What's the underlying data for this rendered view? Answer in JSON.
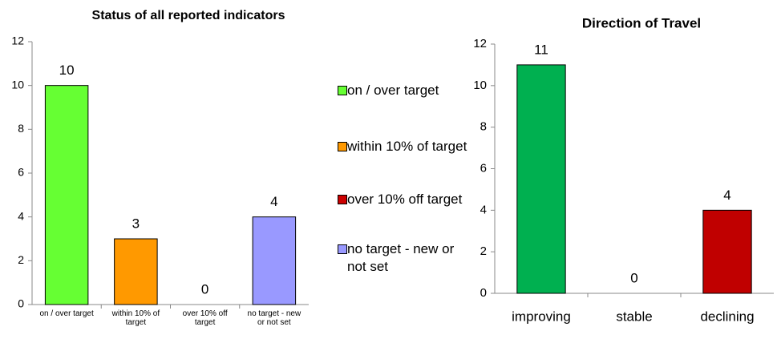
{
  "chart_data": [
    {
      "type": "bar",
      "title": "Status of all reported indicators",
      "categories": [
        "on / over target",
        "within 10% of target",
        "over 10% off target",
        "no target - new or not set"
      ],
      "values": [
        10,
        3,
        0,
        4
      ],
      "colors": [
        "#66ff33",
        "#ff9900",
        "#cc0000",
        "#9999ff"
      ],
      "ylim": [
        0,
        12
      ],
      "yticks": [
        0,
        2,
        4,
        6,
        8,
        10,
        12
      ],
      "legend": "right"
    },
    {
      "type": "bar",
      "title": "Direction of Travel",
      "categories": [
        "improving",
        "stable",
        "declining"
      ],
      "values": [
        11,
        0,
        4
      ],
      "colors": [
        "#00b050",
        null,
        "#c00000"
      ],
      "ylim": [
        0,
        12
      ],
      "yticks": [
        0,
        2,
        4,
        6,
        8,
        10,
        12
      ]
    }
  ]
}
